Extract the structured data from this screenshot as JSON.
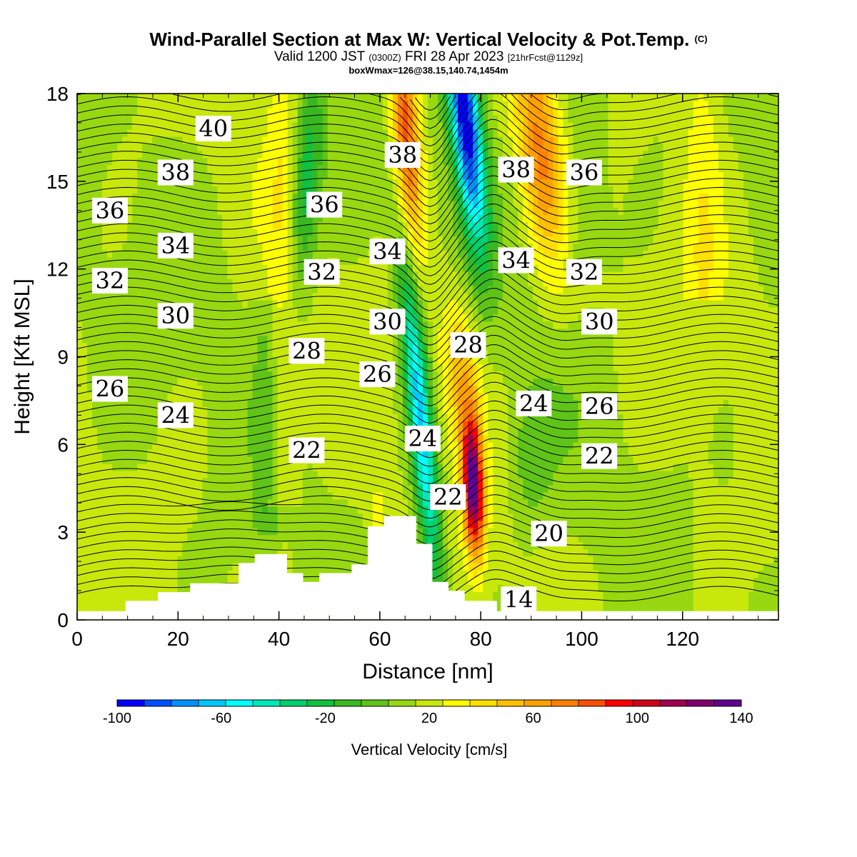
{
  "title": {
    "main": "Wind-Parallel Section at Max W: Vertical Velocity & Pot.Temp.",
    "copyright": "(C)",
    "valid_prefix": "Valid 1200 JST",
    "utc": "(0300Z)",
    "date": "FRI 28 Apr 2023",
    "forecast": "[21hrFcst@1129z]",
    "box": "boxWmax=126@38.15,140.74,1454m"
  },
  "chart_data": {
    "type": "heatmap",
    "title": "Wind-Parallel Section at Max W: Vertical Velocity & Pot.Temp.",
    "xlabel": "Distance [nm]",
    "ylabel": "Height [Kft MSL]",
    "xlim": [
      0,
      139
    ],
    "ylim": [
      0,
      18
    ],
    "xticks": [
      "0",
      "20",
      "40",
      "60",
      "80",
      "100",
      "120"
    ],
    "yticks": [
      "0",
      "3",
      "6",
      "9",
      "12",
      "15",
      "18"
    ],
    "colorbar": {
      "label": "Vertical Velocity [cm/s]",
      "tick_labels": [
        "-100",
        "-60",
        "-20",
        "20",
        "60",
        "100",
        "140"
      ],
      "colors": [
        "#0000ff",
        "#0050ff",
        "#0090ff",
        "#00c8ff",
        "#00ffff",
        "#00e8b8",
        "#00d070",
        "#10c040",
        "#38b820",
        "#60c418",
        "#98d810",
        "#c8e80c",
        "#ffff00",
        "#ffe000",
        "#ffc000",
        "#ffa000",
        "#ff8000",
        "#ff5000",
        "#ff0000",
        "#d0001a",
        "#a00050",
        "#800070",
        "#600090"
      ]
    },
    "terrain_profile": [
      [
        0,
        0.3
      ],
      [
        9.6,
        0.3
      ],
      [
        9.6,
        0.65
      ],
      [
        16,
        0.65
      ],
      [
        16,
        0.95
      ],
      [
        22.4,
        0.95
      ],
      [
        22.4,
        1.25
      ],
      [
        32,
        1.25
      ],
      [
        32,
        1.95
      ],
      [
        35.2,
        1.95
      ],
      [
        35.2,
        2.25
      ],
      [
        41.6,
        2.25
      ],
      [
        41.6,
        1.6
      ],
      [
        44.8,
        1.6
      ],
      [
        44.8,
        1.3
      ],
      [
        48,
        1.3
      ],
      [
        48,
        1.6
      ],
      [
        54.4,
        1.6
      ],
      [
        54.4,
        1.9
      ],
      [
        57.6,
        1.9
      ],
      [
        57.6,
        3.2
      ],
      [
        60.8,
        3.2
      ],
      [
        60.8,
        3.55
      ],
      [
        67.2,
        3.55
      ],
      [
        67.2,
        2.6
      ],
      [
        70.4,
        2.6
      ],
      [
        70.4,
        1.3
      ],
      [
        73.6,
        1.3
      ],
      [
        73.6,
        1.0
      ],
      [
        76.8,
        1.0
      ],
      [
        76.8,
        0.65
      ],
      [
        83.2,
        0.65
      ],
      [
        83.2,
        0.3
      ],
      [
        139,
        0.3
      ]
    ],
    "vertical_velocity_features": [
      {
        "x": 65,
        "z_range": [
          10,
          18
        ],
        "w_max": 80,
        "sign": "updraft"
      },
      {
        "x": 78,
        "z_range": [
          0.8,
          7.5
        ],
        "w_max": 126,
        "sign": "updraft"
      },
      {
        "x": 93,
        "z_range": [
          11,
          18
        ],
        "w_max": 60,
        "sign": "updraft"
      },
      {
        "x": 77,
        "z_range": [
          11,
          18
        ],
        "w_max": -90,
        "sign": "downdraft"
      },
      {
        "x": 68,
        "z_range": [
          2,
          12
        ],
        "w_max": -60,
        "sign": "downdraft"
      },
      {
        "x": 46,
        "z_range": [
          9,
          18
        ],
        "w_max": -40,
        "sign": "downdraft"
      }
    ],
    "contour_labels": [
      {
        "text": "40",
        "x": 27,
        "z": 16.8
      },
      {
        "text": "38",
        "x": 19.5,
        "z": 15.3
      },
      {
        "text": "36",
        "x": 6.5,
        "z": 14.0
      },
      {
        "text": "34",
        "x": 19.5,
        "z": 12.8
      },
      {
        "text": "32",
        "x": 6.5,
        "z": 11.6
      },
      {
        "text": "30",
        "x": 19.5,
        "z": 10.4
      },
      {
        "text": "26",
        "x": 6.5,
        "z": 7.9
      },
      {
        "text": "24",
        "x": 19.5,
        "z": 7.0
      },
      {
        "text": "36",
        "x": 49,
        "z": 14.2
      },
      {
        "text": "32",
        "x": 48.5,
        "z": 11.9
      },
      {
        "text": "28",
        "x": 45.5,
        "z": 9.2
      },
      {
        "text": "22",
        "x": 45.5,
        "z": 5.8
      },
      {
        "text": "38",
        "x": 64.5,
        "z": 15.9
      },
      {
        "text": "34",
        "x": 61.5,
        "z": 12.6
      },
      {
        "text": "30",
        "x": 61.5,
        "z": 10.2
      },
      {
        "text": "26",
        "x": 59.5,
        "z": 8.4
      },
      {
        "text": "24",
        "x": 68.5,
        "z": 6.2
      },
      {
        "text": "22",
        "x": 73.5,
        "z": 4.2
      },
      {
        "text": "28",
        "x": 77.5,
        "z": 9.4
      },
      {
        "text": "38",
        "x": 87,
        "z": 15.4
      },
      {
        "text": "34",
        "x": 87,
        "z": 12.3
      },
      {
        "text": "24",
        "x": 90.5,
        "z": 7.4
      },
      {
        "text": "20",
        "x": 93.5,
        "z": 2.95
      },
      {
        "text": "14",
        "x": 87.5,
        "z": 0.7
      },
      {
        "text": "36",
        "x": 100.5,
        "z": 15.3
      },
      {
        "text": "32",
        "x": 100.5,
        "z": 11.9
      },
      {
        "text": "30",
        "x": 103.5,
        "z": 10.2
      },
      {
        "text": "26",
        "x": 103.5,
        "z": 7.3
      },
      {
        "text": "22",
        "x": 103.5,
        "z": 5.6
      }
    ]
  }
}
